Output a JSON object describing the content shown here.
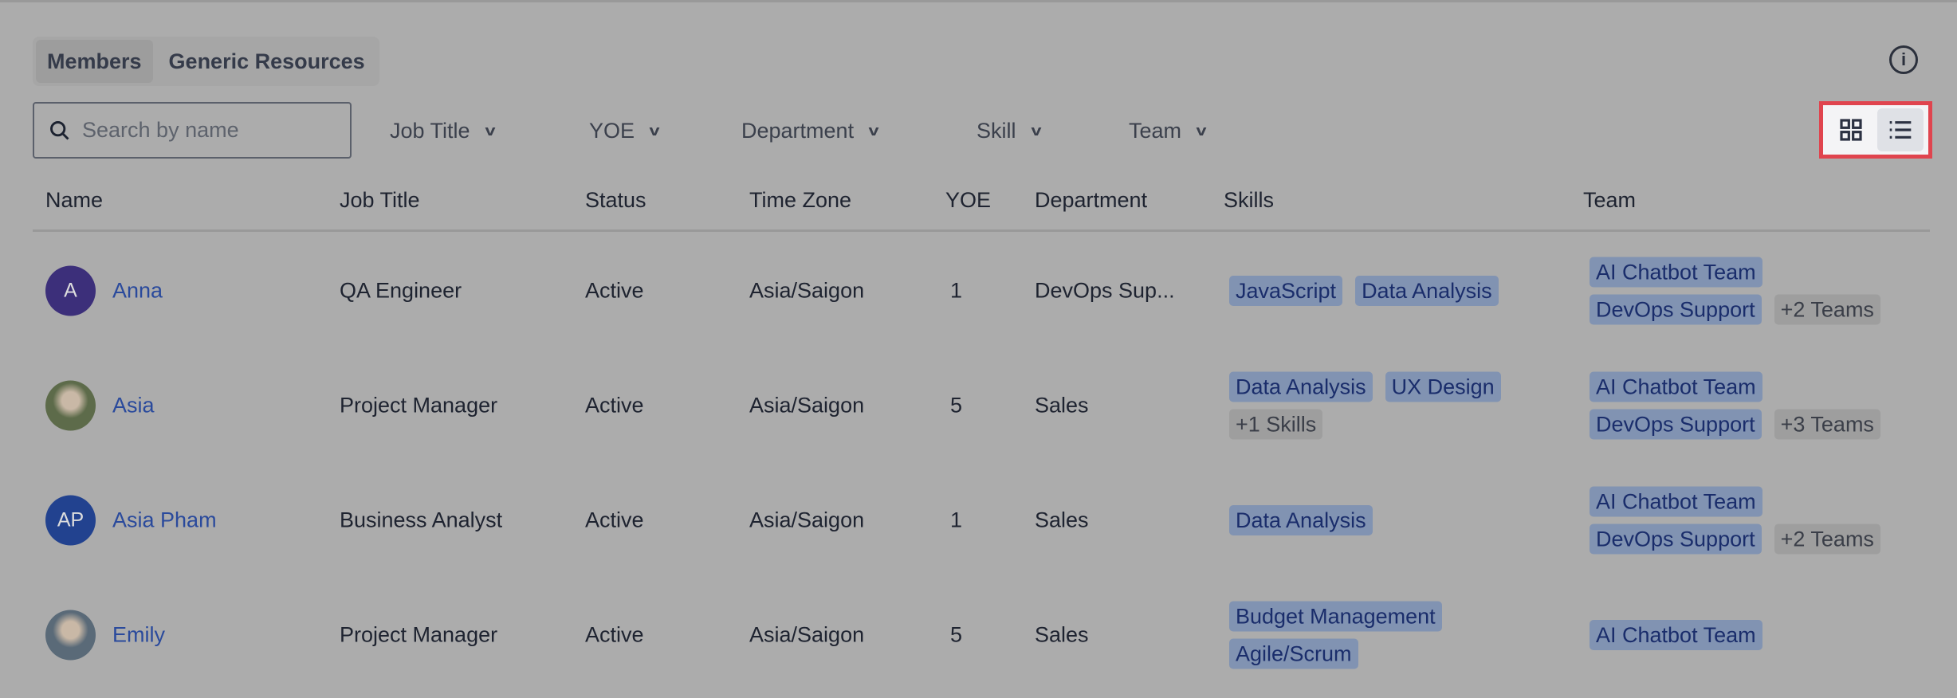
{
  "tabs": [
    {
      "label": "Members",
      "active": true
    },
    {
      "label": "Generic Resources",
      "active": false
    }
  ],
  "search": {
    "placeholder": "Search by name",
    "value": ""
  },
  "filters": [
    "Job Title",
    "YOE",
    "Department",
    "Skill",
    "Team"
  ],
  "view_toggle": {
    "options": [
      "grid-view",
      "list-view"
    ],
    "active": "list-view",
    "highlight_color": "#e0444e"
  },
  "columns": [
    "Name",
    "Job Title",
    "Status",
    "Time Zone",
    "YOE",
    "Department",
    "Skills",
    "Team"
  ],
  "rows": [
    {
      "initials": "A",
      "avatar_color": "#3c2f7a",
      "name": "Anna",
      "job_title": "QA Engineer",
      "status": "Active",
      "time_zone": "Asia/Saigon",
      "yoe": "1",
      "department": "DevOps Sup...",
      "skills": [
        "JavaScript",
        "Data Analysis"
      ],
      "skills_more": "",
      "teams": [
        "AI Chatbot Team",
        "DevOps Support"
      ],
      "teams_more": "+2 Teams"
    },
    {
      "initials": "",
      "avatar_color": "#5d6b4a",
      "name": "Asia",
      "job_title": "Project Manager",
      "status": "Active",
      "time_zone": "Asia/Saigon",
      "yoe": "5",
      "department": "Sales",
      "skills": [
        "Data Analysis",
        "UX Design"
      ],
      "skills_more": "+1 Skills",
      "teams": [
        "AI Chatbot Team",
        "DevOps Support"
      ],
      "teams_more": "+3 Teams"
    },
    {
      "initials": "AP",
      "avatar_color": "#22428f",
      "name": "Asia Pham",
      "job_title": "Business Analyst",
      "status": "Active",
      "time_zone": "Asia/Saigon",
      "yoe": "1",
      "department": "Sales",
      "skills": [
        "Data Analysis"
      ],
      "skills_more": "",
      "teams": [
        "AI Chatbot Team",
        "DevOps Support"
      ],
      "teams_more": "+2 Teams"
    },
    {
      "initials": "",
      "avatar_color": "#5a6a78",
      "name": "Emily",
      "job_title": "Project Manager",
      "status": "Active",
      "time_zone": "Asia/Saigon",
      "yoe": "5",
      "department": "Sales",
      "skills": [
        "Budget Management",
        "Agile/Scrum"
      ],
      "skills_more": "",
      "teams": [
        "AI Chatbot Team"
      ],
      "teams_more": ""
    }
  ]
}
